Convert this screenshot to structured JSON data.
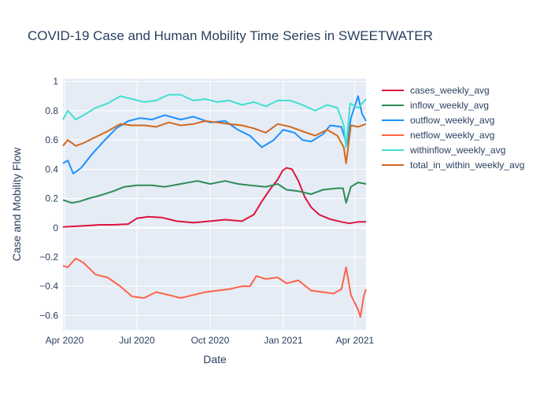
{
  "chart_data": {
    "type": "line",
    "title": "COVID-19 Case and Human Mobility Time Series in SWEETWATER",
    "xlabel": "Date",
    "ylabel": "Case and Mobility Flow",
    "xlim": [
      "2020-03-30",
      "2021-04-15"
    ],
    "ylim": [
      -0.7,
      1.02
    ],
    "x_ticks": [
      {
        "date": "2020-04-01",
        "label": "Apr 2020"
      },
      {
        "date": "2020-07-01",
        "label": "Jul 2020"
      },
      {
        "date": "2020-10-01",
        "label": "Oct 2020"
      },
      {
        "date": "2021-01-01",
        "label": "Jan 2021"
      },
      {
        "date": "2021-04-01",
        "label": "Apr 2021"
      }
    ],
    "y_ticks": [
      {
        "value": -0.6,
        "label": "−0.6"
      },
      {
        "value": -0.4,
        "label": "−0.4"
      },
      {
        "value": -0.2,
        "label": "−0.2"
      },
      {
        "value": 0,
        "label": "0"
      },
      {
        "value": 0.2,
        "label": "0.2"
      },
      {
        "value": 0.4,
        "label": "0.4"
      },
      {
        "value": 0.6,
        "label": "0.6"
      },
      {
        "value": 0.8,
        "label": "0.8"
      },
      {
        "value": 1,
        "label": "1"
      }
    ],
    "grid": true,
    "legend_position": "right",
    "plot_bg": "#e5ecf6",
    "series": [
      {
        "name": "cases_weekly_avg",
        "color": "#dc143c",
        "points": [
          [
            "2020-03-30",
            0.005
          ],
          [
            "2020-04-15",
            0.01
          ],
          [
            "2020-05-01",
            0.015
          ],
          [
            "2020-05-15",
            0.02
          ],
          [
            "2020-06-01",
            0.02
          ],
          [
            "2020-06-20",
            0.025
          ],
          [
            "2020-07-01",
            0.065
          ],
          [
            "2020-07-15",
            0.075
          ],
          [
            "2020-08-01",
            0.07
          ],
          [
            "2020-08-20",
            0.045
          ],
          [
            "2020-09-10",
            0.035
          ],
          [
            "2020-10-01",
            0.045
          ],
          [
            "2020-10-20",
            0.055
          ],
          [
            "2020-11-10",
            0.045
          ],
          [
            "2020-11-25",
            0.09
          ],
          [
            "2020-12-05",
            0.18
          ],
          [
            "2020-12-15",
            0.26
          ],
          [
            "2020-12-25",
            0.33
          ],
          [
            "2020-12-31",
            0.39
          ],
          [
            "2021-01-05",
            0.41
          ],
          [
            "2021-01-12",
            0.4
          ],
          [
            "2021-01-20",
            0.32
          ],
          [
            "2021-01-28",
            0.21
          ],
          [
            "2021-02-05",
            0.14
          ],
          [
            "2021-02-15",
            0.09
          ],
          [
            "2021-02-28",
            0.06
          ],
          [
            "2021-03-15",
            0.04
          ],
          [
            "2021-03-25",
            0.03
          ],
          [
            "2021-04-05",
            0.04
          ],
          [
            "2021-04-15",
            0.04
          ]
        ]
      },
      {
        "name": "inflow_weekly_avg",
        "color": "#2e8b57",
        "points": [
          [
            "2020-03-30",
            0.19
          ],
          [
            "2020-04-10",
            0.17
          ],
          [
            "2020-04-20",
            0.18
          ],
          [
            "2020-05-01",
            0.2
          ],
          [
            "2020-05-15",
            0.22
          ],
          [
            "2020-06-01",
            0.25
          ],
          [
            "2020-06-15",
            0.28
          ],
          [
            "2020-07-01",
            0.29
          ],
          [
            "2020-07-20",
            0.29
          ],
          [
            "2020-08-05",
            0.28
          ],
          [
            "2020-08-25",
            0.3
          ],
          [
            "2020-09-15",
            0.32
          ],
          [
            "2020-10-01",
            0.3
          ],
          [
            "2020-10-20",
            0.32
          ],
          [
            "2020-11-05",
            0.3
          ],
          [
            "2020-11-20",
            0.29
          ],
          [
            "2020-12-10",
            0.28
          ],
          [
            "2020-12-25",
            0.3
          ],
          [
            "2021-01-05",
            0.26
          ],
          [
            "2021-01-20",
            0.25
          ],
          [
            "2021-02-05",
            0.23
          ],
          [
            "2021-02-20",
            0.26
          ],
          [
            "2021-03-10",
            0.27
          ],
          [
            "2021-03-17",
            0.27
          ],
          [
            "2021-03-21",
            0.17
          ],
          [
            "2021-03-27",
            0.28
          ],
          [
            "2021-04-05",
            0.31
          ],
          [
            "2021-04-15",
            0.3
          ]
        ]
      },
      {
        "name": "outflow_weekly_avg",
        "color": "#1e90ff",
        "points": [
          [
            "2020-03-30",
            0.44
          ],
          [
            "2020-04-05",
            0.46
          ],
          [
            "2020-04-12",
            0.37
          ],
          [
            "2020-04-22",
            0.41
          ],
          [
            "2020-05-05",
            0.5
          ],
          [
            "2020-05-20",
            0.59
          ],
          [
            "2020-06-05",
            0.68
          ],
          [
            "2020-06-20",
            0.73
          ],
          [
            "2020-07-05",
            0.75
          ],
          [
            "2020-07-20",
            0.74
          ],
          [
            "2020-08-05",
            0.77
          ],
          [
            "2020-08-25",
            0.74
          ],
          [
            "2020-09-10",
            0.76
          ],
          [
            "2020-10-01",
            0.72
          ],
          [
            "2020-10-20",
            0.73
          ],
          [
            "2020-11-05",
            0.67
          ],
          [
            "2020-11-20",
            0.63
          ],
          [
            "2020-12-05",
            0.55
          ],
          [
            "2020-12-20",
            0.6
          ],
          [
            "2021-01-01",
            0.67
          ],
          [
            "2021-01-15",
            0.65
          ],
          [
            "2021-01-25",
            0.6
          ],
          [
            "2021-02-05",
            0.59
          ],
          [
            "2021-02-20",
            0.64
          ],
          [
            "2021-03-01",
            0.7
          ],
          [
            "2021-03-15",
            0.69
          ],
          [
            "2021-03-22",
            0.57
          ],
          [
            "2021-03-27",
            0.75
          ],
          [
            "2021-04-05",
            0.9
          ],
          [
            "2021-04-10",
            0.78
          ],
          [
            "2021-04-15",
            0.73
          ]
        ]
      },
      {
        "name": "netflow_weekly_avg",
        "color": "#ff6347",
        "points": [
          [
            "2020-03-30",
            -0.26
          ],
          [
            "2020-04-05",
            -0.27
          ],
          [
            "2020-04-15",
            -0.21
          ],
          [
            "2020-04-25",
            -0.24
          ],
          [
            "2020-05-10",
            -0.32
          ],
          [
            "2020-05-25",
            -0.34
          ],
          [
            "2020-06-10",
            -0.4
          ],
          [
            "2020-06-25",
            -0.47
          ],
          [
            "2020-07-10",
            -0.48
          ],
          [
            "2020-07-25",
            -0.44
          ],
          [
            "2020-08-10",
            -0.46
          ],
          [
            "2020-08-25",
            -0.48
          ],
          [
            "2020-09-10",
            -0.46
          ],
          [
            "2020-09-25",
            -0.44
          ],
          [
            "2020-10-10",
            -0.43
          ],
          [
            "2020-10-25",
            -0.42
          ],
          [
            "2020-11-10",
            -0.4
          ],
          [
            "2020-11-20",
            -0.4
          ],
          [
            "2020-11-28",
            -0.33
          ],
          [
            "2020-12-10",
            -0.35
          ],
          [
            "2020-12-25",
            -0.34
          ],
          [
            "2021-01-05",
            -0.38
          ],
          [
            "2021-01-20",
            -0.36
          ],
          [
            "2021-02-05",
            -0.43
          ],
          [
            "2021-02-20",
            -0.44
          ],
          [
            "2021-03-05",
            -0.45
          ],
          [
            "2021-03-15",
            -0.42
          ],
          [
            "2021-03-21",
            -0.27
          ],
          [
            "2021-03-27",
            -0.46
          ],
          [
            "2021-04-05",
            -0.56
          ],
          [
            "2021-04-08",
            -0.61
          ],
          [
            "2021-04-12",
            -0.47
          ],
          [
            "2021-04-15",
            -0.42
          ]
        ]
      },
      {
        "name": "withinflow_weekly_avg",
        "color": "#40e0d0",
        "points": [
          [
            "2020-03-30",
            0.74
          ],
          [
            "2020-04-05",
            0.8
          ],
          [
            "2020-04-15",
            0.74
          ],
          [
            "2020-04-25",
            0.77
          ],
          [
            "2020-05-10",
            0.82
          ],
          [
            "2020-05-25",
            0.85
          ],
          [
            "2020-06-10",
            0.9
          ],
          [
            "2020-06-25",
            0.88
          ],
          [
            "2020-07-10",
            0.86
          ],
          [
            "2020-07-25",
            0.87
          ],
          [
            "2020-08-10",
            0.91
          ],
          [
            "2020-08-25",
            0.91
          ],
          [
            "2020-09-10",
            0.87
          ],
          [
            "2020-09-25",
            0.88
          ],
          [
            "2020-10-10",
            0.86
          ],
          [
            "2020-10-25",
            0.87
          ],
          [
            "2020-11-10",
            0.84
          ],
          [
            "2020-11-25",
            0.86
          ],
          [
            "2020-12-10",
            0.83
          ],
          [
            "2020-12-25",
            0.87
          ],
          [
            "2021-01-10",
            0.87
          ],
          [
            "2021-01-25",
            0.84
          ],
          [
            "2021-02-10",
            0.8
          ],
          [
            "2021-02-25",
            0.84
          ],
          [
            "2021-03-10",
            0.82
          ],
          [
            "2021-03-18",
            0.7
          ],
          [
            "2021-03-21",
            0.55
          ],
          [
            "2021-03-26",
            0.85
          ],
          [
            "2021-04-05",
            0.82
          ],
          [
            "2021-04-15",
            0.88
          ]
        ]
      },
      {
        "name": "total_in_within_weekly_avg",
        "color": "#d2691e",
        "points": [
          [
            "2020-03-30",
            0.56
          ],
          [
            "2020-04-05",
            0.6
          ],
          [
            "2020-04-15",
            0.56
          ],
          [
            "2020-04-25",
            0.58
          ],
          [
            "2020-05-10",
            0.62
          ],
          [
            "2020-05-25",
            0.66
          ],
          [
            "2020-06-10",
            0.71
          ],
          [
            "2020-06-25",
            0.7
          ],
          [
            "2020-07-10",
            0.7
          ],
          [
            "2020-07-25",
            0.69
          ],
          [
            "2020-08-10",
            0.72
          ],
          [
            "2020-08-25",
            0.7
          ],
          [
            "2020-09-10",
            0.71
          ],
          [
            "2020-09-25",
            0.73
          ],
          [
            "2020-10-10",
            0.72
          ],
          [
            "2020-10-25",
            0.71
          ],
          [
            "2020-11-10",
            0.7
          ],
          [
            "2020-11-25",
            0.68
          ],
          [
            "2020-12-10",
            0.65
          ],
          [
            "2020-12-25",
            0.71
          ],
          [
            "2021-01-10",
            0.69
          ],
          [
            "2021-01-25",
            0.66
          ],
          [
            "2021-02-10",
            0.63
          ],
          [
            "2021-02-25",
            0.67
          ],
          [
            "2021-03-10",
            0.63
          ],
          [
            "2021-03-18",
            0.55
          ],
          [
            "2021-03-21",
            0.44
          ],
          [
            "2021-03-27",
            0.7
          ],
          [
            "2021-04-05",
            0.69
          ],
          [
            "2021-04-15",
            0.71
          ]
        ]
      }
    ]
  }
}
